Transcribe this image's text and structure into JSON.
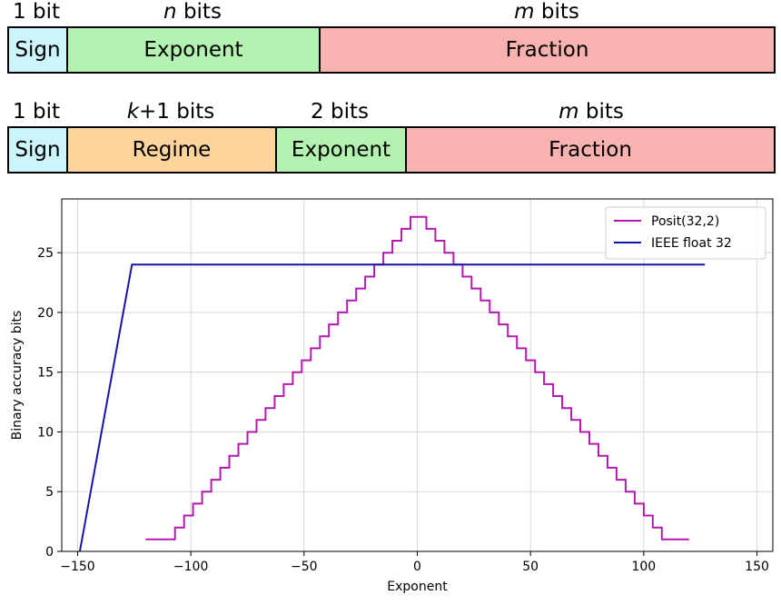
{
  "colors": {
    "sign": "#ccf4fb",
    "exponent": "#b4f2b1",
    "fraction": "#f8b3b0",
    "regime": "#fdd49b",
    "posit_line": "#b219b1",
    "ieee_line": "#1616a6"
  },
  "ieee_layout": {
    "labels": [
      {
        "var": "",
        "text": "1 bit"
      },
      {
        "var": "n",
        "text": " bits"
      },
      {
        "var": "m",
        "text": " bits"
      }
    ],
    "fields": [
      {
        "name": "Sign",
        "color_key": "sign"
      },
      {
        "name": "Exponent",
        "color_key": "exponent"
      },
      {
        "name": "Fraction",
        "color_key": "fraction"
      }
    ]
  },
  "posit_layout": {
    "labels": [
      {
        "var": "",
        "text": "1 bit"
      },
      {
        "var": "k",
        "text": "+1 bits"
      },
      {
        "var": "",
        "text": "2 bits"
      },
      {
        "var": "m",
        "text": " bits"
      }
    ],
    "fields": [
      {
        "name": "Sign",
        "color_key": "sign"
      },
      {
        "name": "Regime",
        "color_key": "regime"
      },
      {
        "name": "Exponent",
        "color_key": "exponent"
      },
      {
        "name": "Fraction",
        "color_key": "fraction"
      }
    ]
  },
  "chart_data": {
    "type": "line",
    "title": "",
    "xlabel": "Exponent",
    "ylabel": "Binary accuracy bits",
    "xlim": [
      -157,
      157
    ],
    "ylim": [
      0,
      29.5
    ],
    "xticks": [
      -150,
      -100,
      -50,
      0,
      50,
      100,
      150
    ],
    "xtick_labels": [
      "−150",
      "−100",
      "−50",
      "0",
      "50",
      "100",
      "150"
    ],
    "yticks": [
      0,
      5,
      10,
      15,
      20,
      25
    ],
    "ytick_labels": [
      "0",
      "5",
      "10",
      "15",
      "20",
      "25"
    ],
    "grid": true,
    "legend_position": "top-right",
    "series": [
      {
        "name": "Posit(32,2)",
        "color_key": "posit_line",
        "style": "step",
        "x_min": -120,
        "x_max": 120,
        "peak_bits": 28,
        "step_width": 4,
        "floor_bits": 1
      },
      {
        "name": "IEEE float 32",
        "color_key": "ieee_line",
        "style": "line",
        "points": [
          [
            -149,
            0
          ],
          [
            -126,
            24
          ],
          [
            127,
            24
          ]
        ]
      }
    ]
  }
}
